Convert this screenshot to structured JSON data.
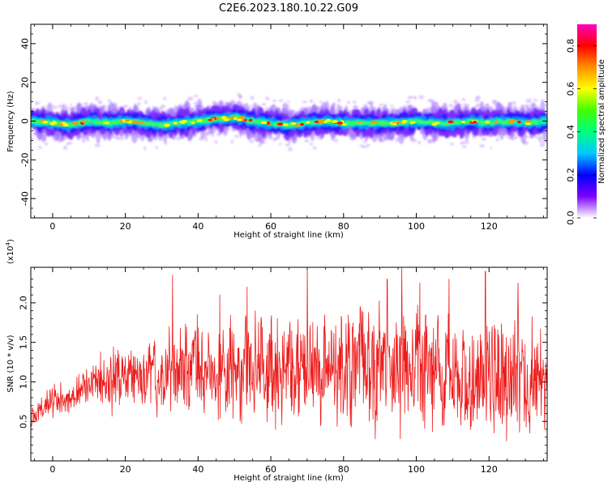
{
  "chart_data": [
    {
      "type": "heatmap",
      "title": "C2E6.2023.180.10.22.G09",
      "xlabel": "Height of straight line (km)",
      "ylabel": "Frequency (Hz)",
      "xlim": [
        -6,
        136
      ],
      "ylim": [
        -50,
        50
      ],
      "x_ticks": [
        0,
        20,
        40,
        60,
        80,
        100,
        120
      ],
      "y_ticks": [
        -40,
        -20,
        0,
        20,
        40
      ],
      "colorbar": {
        "label": "Normalized spectral amplitude",
        "range": [
          0.0,
          0.9
        ],
        "ticks": [
          0.0,
          0.2,
          0.4,
          0.6,
          0.8
        ],
        "colormap": [
          "#ffffff",
          "#7d00ff",
          "#0000ff",
          "#00c8ff",
          "#00ff80",
          "#40ff00",
          "#ffff00",
          "#ff9000",
          "#ff0000",
          "#ff00c0"
        ]
      },
      "ridge": {
        "x": [
          -6,
          0,
          5,
          10,
          15,
          20,
          25,
          30,
          35,
          40,
          45,
          50,
          55,
          60,
          65,
          70,
          75,
          80,
          85,
          90,
          95,
          100,
          105,
          110,
          115,
          120,
          125,
          130,
          136
        ],
        "y": [
          0,
          -1,
          -2,
          0,
          -1,
          0,
          -1,
          -2,
          -1,
          0,
          1,
          2,
          0,
          -1,
          -2,
          -1,
          0,
          -1,
          -1,
          -1,
          -1,
          0,
          -1,
          -1,
          0,
          -1,
          0,
          -1,
          0
        ]
      }
    },
    {
      "type": "line",
      "title": "",
      "xlabel": "Height of straight line (km)",
      "ylabel": "SNR (10 * v/v)",
      "multiplier": "(x10",
      "multiplier_exp": "4",
      "multiplier_close": ")",
      "xlim": [
        -6,
        136
      ],
      "ylim": [
        0.0,
        2.45
      ],
      "x_ticks": [
        0,
        20,
        40,
        60,
        80,
        100,
        120
      ],
      "y_ticks": [
        0.5,
        1.0,
        1.5,
        2.0
      ],
      "y_tick_labels": [
        "0.5",
        "1.0",
        "1.5",
        "2.0"
      ],
      "color": "#ee1c1c",
      "envelope": {
        "x": [
          -6,
          0,
          10,
          20,
          30,
          40,
          50,
          60,
          70,
          80,
          90,
          100,
          110,
          120,
          130,
          136
        ],
        "mean": [
          0.55,
          0.75,
          0.95,
          1.05,
          1.15,
          1.2,
          1.2,
          1.2,
          1.2,
          1.2,
          1.2,
          1.15,
          1.15,
          1.1,
          1.05,
          1.1
        ],
        "spread": [
          0.15,
          0.25,
          0.35,
          0.45,
          0.55,
          0.65,
          0.7,
          0.75,
          0.8,
          0.85,
          0.85,
          0.85,
          0.85,
          0.85,
          0.85,
          0.8
        ]
      },
      "peaks": [
        {
          "x": 33,
          "y": 2.35
        },
        {
          "x": 46,
          "y": 2.1
        },
        {
          "x": 53.5,
          "y": 2.2
        },
        {
          "x": 70,
          "y": 2.45
        },
        {
          "x": 92,
          "y": 2.3
        },
        {
          "x": 96,
          "y": 2.45
        },
        {
          "x": 101,
          "y": 2.25
        },
        {
          "x": 109,
          "y": 2.3
        },
        {
          "x": 119,
          "y": 2.4
        },
        {
          "x": 128,
          "y": 2.25
        }
      ]
    }
  ]
}
